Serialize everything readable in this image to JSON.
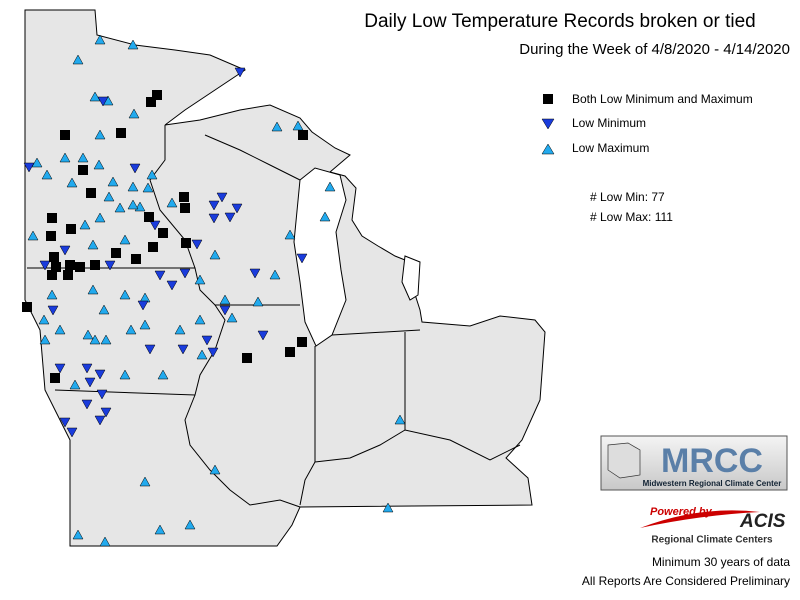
{
  "header": {
    "title": "Daily Low Temperature Records broken or tied",
    "subtitle": "During the Week of 4/8/2020 - 4/14/2020"
  },
  "legend": [
    "Both Low Minimum and Maximum",
    "Low Minimum",
    "Low Maximum"
  ],
  "counts": [
    "# Low Min: 77",
    "# Low Max: 111"
  ],
  "logos": {
    "mrcc": "MRCC",
    "mrcc_name": "Midwestern Regional Climate Center",
    "powered": "Powered by",
    "acis": "ACIS",
    "acis_name": "Regional Climate Centers"
  },
  "footer": [
    "Minimum 30 years of data",
    "All Reports Are Considered Preliminary"
  ]
}
